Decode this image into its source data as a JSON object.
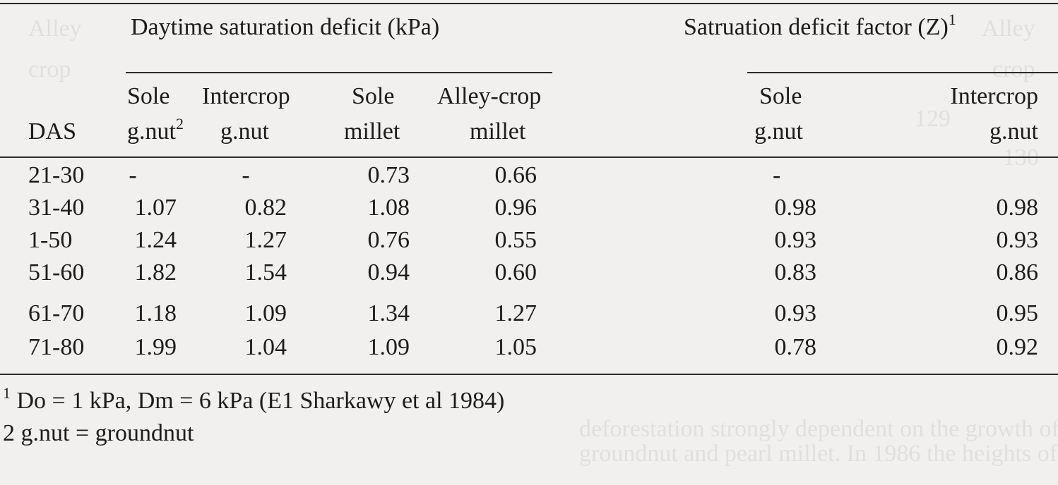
{
  "header": {
    "group1_title": "Daytime saturation deficit (kPa)",
    "group2_title": "Satruation deficit factor (Z)",
    "group2_sup": "1",
    "col_das": "DAS",
    "cols": [
      {
        "line1": "Sole",
        "line2": "g.nut",
        "sup": "2"
      },
      {
        "line1": "Intercrop",
        "line2": "g.nut",
        "sup": ""
      },
      {
        "line1": "Sole",
        "line2": "millet",
        "sup": ""
      },
      {
        "line1": "Alley-crop",
        "line2": "millet",
        "sup": ""
      },
      {
        "line1": "Sole",
        "line2": "g.nut",
        "sup": ""
      },
      {
        "line1": "Intercrop",
        "line2": "g.nut",
        "sup": ""
      }
    ]
  },
  "rows": [
    {
      "das": "21-30",
      "c1": "-",
      "c2": "-",
      "c3": "0.73",
      "c4": "0.66",
      "c5": "-",
      "c6": ""
    },
    {
      "das": "31-40",
      "c1": "1.07",
      "c2": "0.82",
      "c3": "1.08",
      "c4": "0.96",
      "c5": "0.98",
      "c6": "0.98"
    },
    {
      "das": "1-50",
      "c1": "1.24",
      "c2": "1.27",
      "c3": "0.76",
      "c4": "0.55",
      "c5": "0.93",
      "c6": "0.93"
    },
    {
      "das": "51-60",
      "c1": "1.82",
      "c2": "1.54",
      "c3": "0.94",
      "c4": "0.60",
      "c5": "0.83",
      "c6": "0.86"
    },
    {
      "das": "61-70",
      "c1": "1.18",
      "c2": "1.09",
      "c3": "1.34",
      "c4": "1.27",
      "c5": "0.93",
      "c6": "0.95"
    },
    {
      "das": "71-80",
      "c1": "1.99",
      "c2": "1.04",
      "c3": "1.09",
      "c4": "1.05",
      "c5": "0.78",
      "c6": "0.92"
    }
  ],
  "footnotes": {
    "fn1_mark": "1",
    "fn1_text": "Do = 1 kPa, Dm = 6 kPa (E1 Sharkawy et al 1984)",
    "fn2_text": "2 g.nut = groundnut"
  }
}
